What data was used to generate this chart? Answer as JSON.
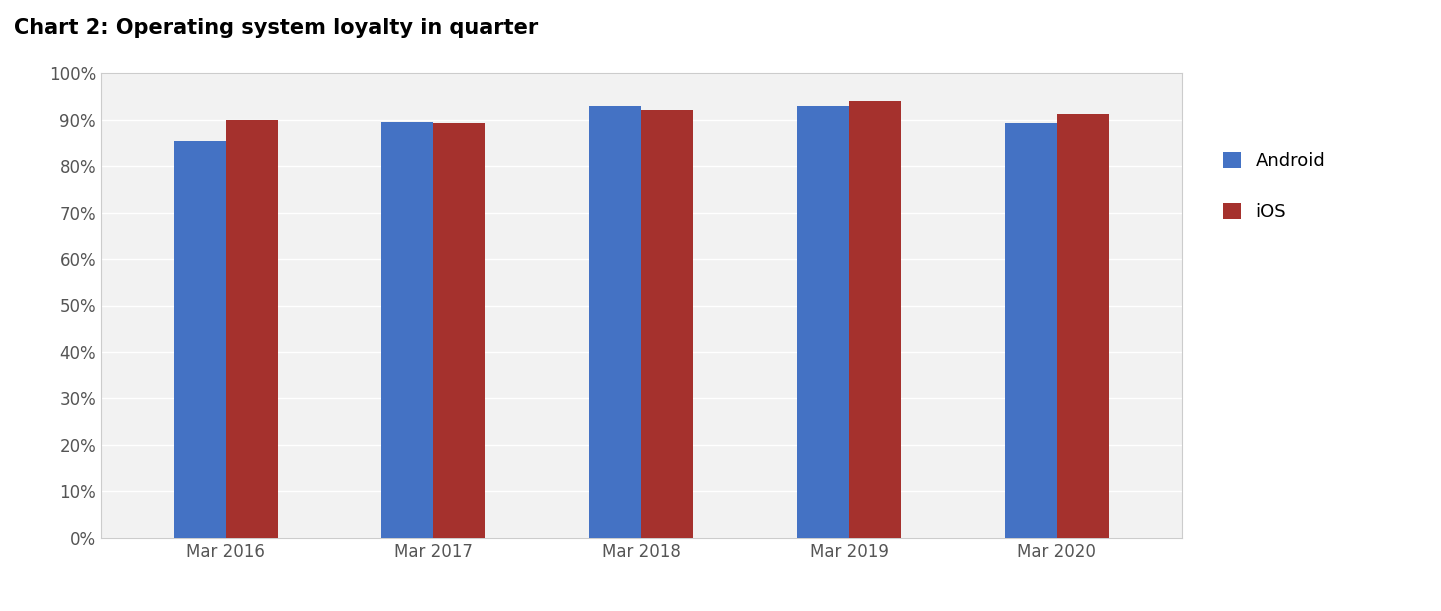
{
  "title": "Chart 2: Operating system loyalty in quarter",
  "categories": [
    "Mar 2016",
    "Mar 2017",
    "Mar 2018",
    "Mar 2019",
    "Mar 2020"
  ],
  "android_values": [
    0.855,
    0.895,
    0.93,
    0.93,
    0.893
  ],
  "ios_values": [
    0.9,
    0.893,
    0.922,
    0.94,
    0.912
  ],
  "android_color": "#4472C4",
  "ios_color": "#A5312D",
  "background_color": "#FFFFFF",
  "plot_bg_color": "#F2F2F2",
  "ylim": [
    0,
    1.0
  ],
  "yticks": [
    0.0,
    0.1,
    0.2,
    0.3,
    0.4,
    0.5,
    0.6,
    0.7,
    0.8,
    0.9,
    1.0
  ],
  "legend_labels": [
    "Android",
    "iOS"
  ],
  "title_fontsize": 15,
  "tick_fontsize": 12,
  "legend_fontsize": 13,
  "bar_width": 0.25,
  "grid_color": "#FFFFFF",
  "spine_color": "#CCCCCC"
}
